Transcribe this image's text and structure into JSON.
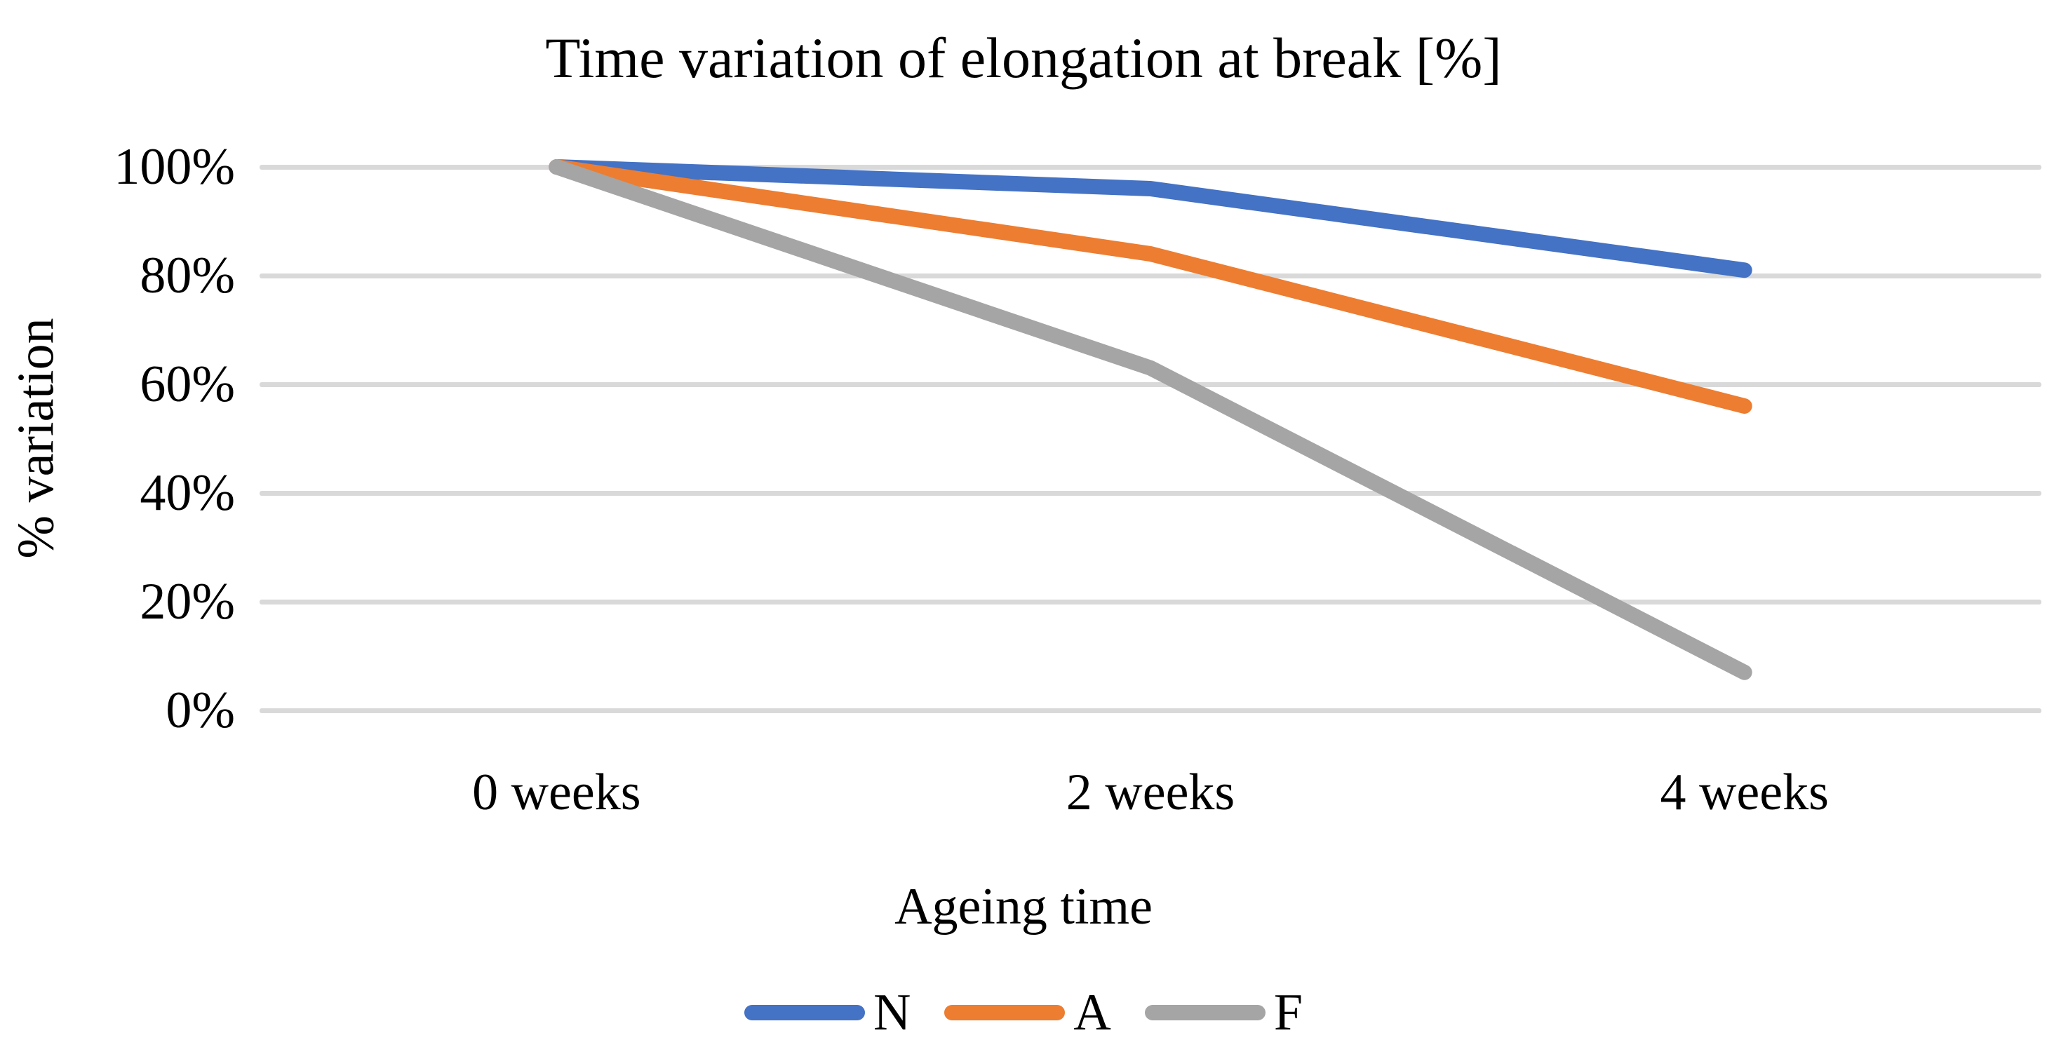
{
  "chart_data": {
    "type": "line",
    "title": "Time variation of elongation at break [%]",
    "xlabel": "Ageing time",
    "ylabel": "% variation",
    "categories": [
      "0 weeks",
      "2 weeks",
      "4 weeks"
    ],
    "series": [
      {
        "name": "N",
        "color": "#4472C4",
        "values": [
          100,
          96,
          81
        ]
      },
      {
        "name": "A",
        "color": "#ED7D31",
        "values": [
          100,
          84,
          56
        ]
      },
      {
        "name": "F",
        "color": "#A5A5A5",
        "values": [
          100,
          63,
          7
        ]
      }
    ],
    "y_ticks": [
      {
        "label": "100%",
        "value": 100
      },
      {
        "label": "80%",
        "value": 80
      },
      {
        "label": "60%",
        "value": 60
      },
      {
        "label": "40%",
        "value": 40
      },
      {
        "label": "20%",
        "value": 20
      },
      {
        "label": "0%",
        "value": 0
      }
    ],
    "ylim": [
      0,
      100
    ],
    "grid": "horizontal",
    "gridline_color": "#D9D9D9",
    "text_color": "#000000",
    "legend_position": "bottom"
  }
}
